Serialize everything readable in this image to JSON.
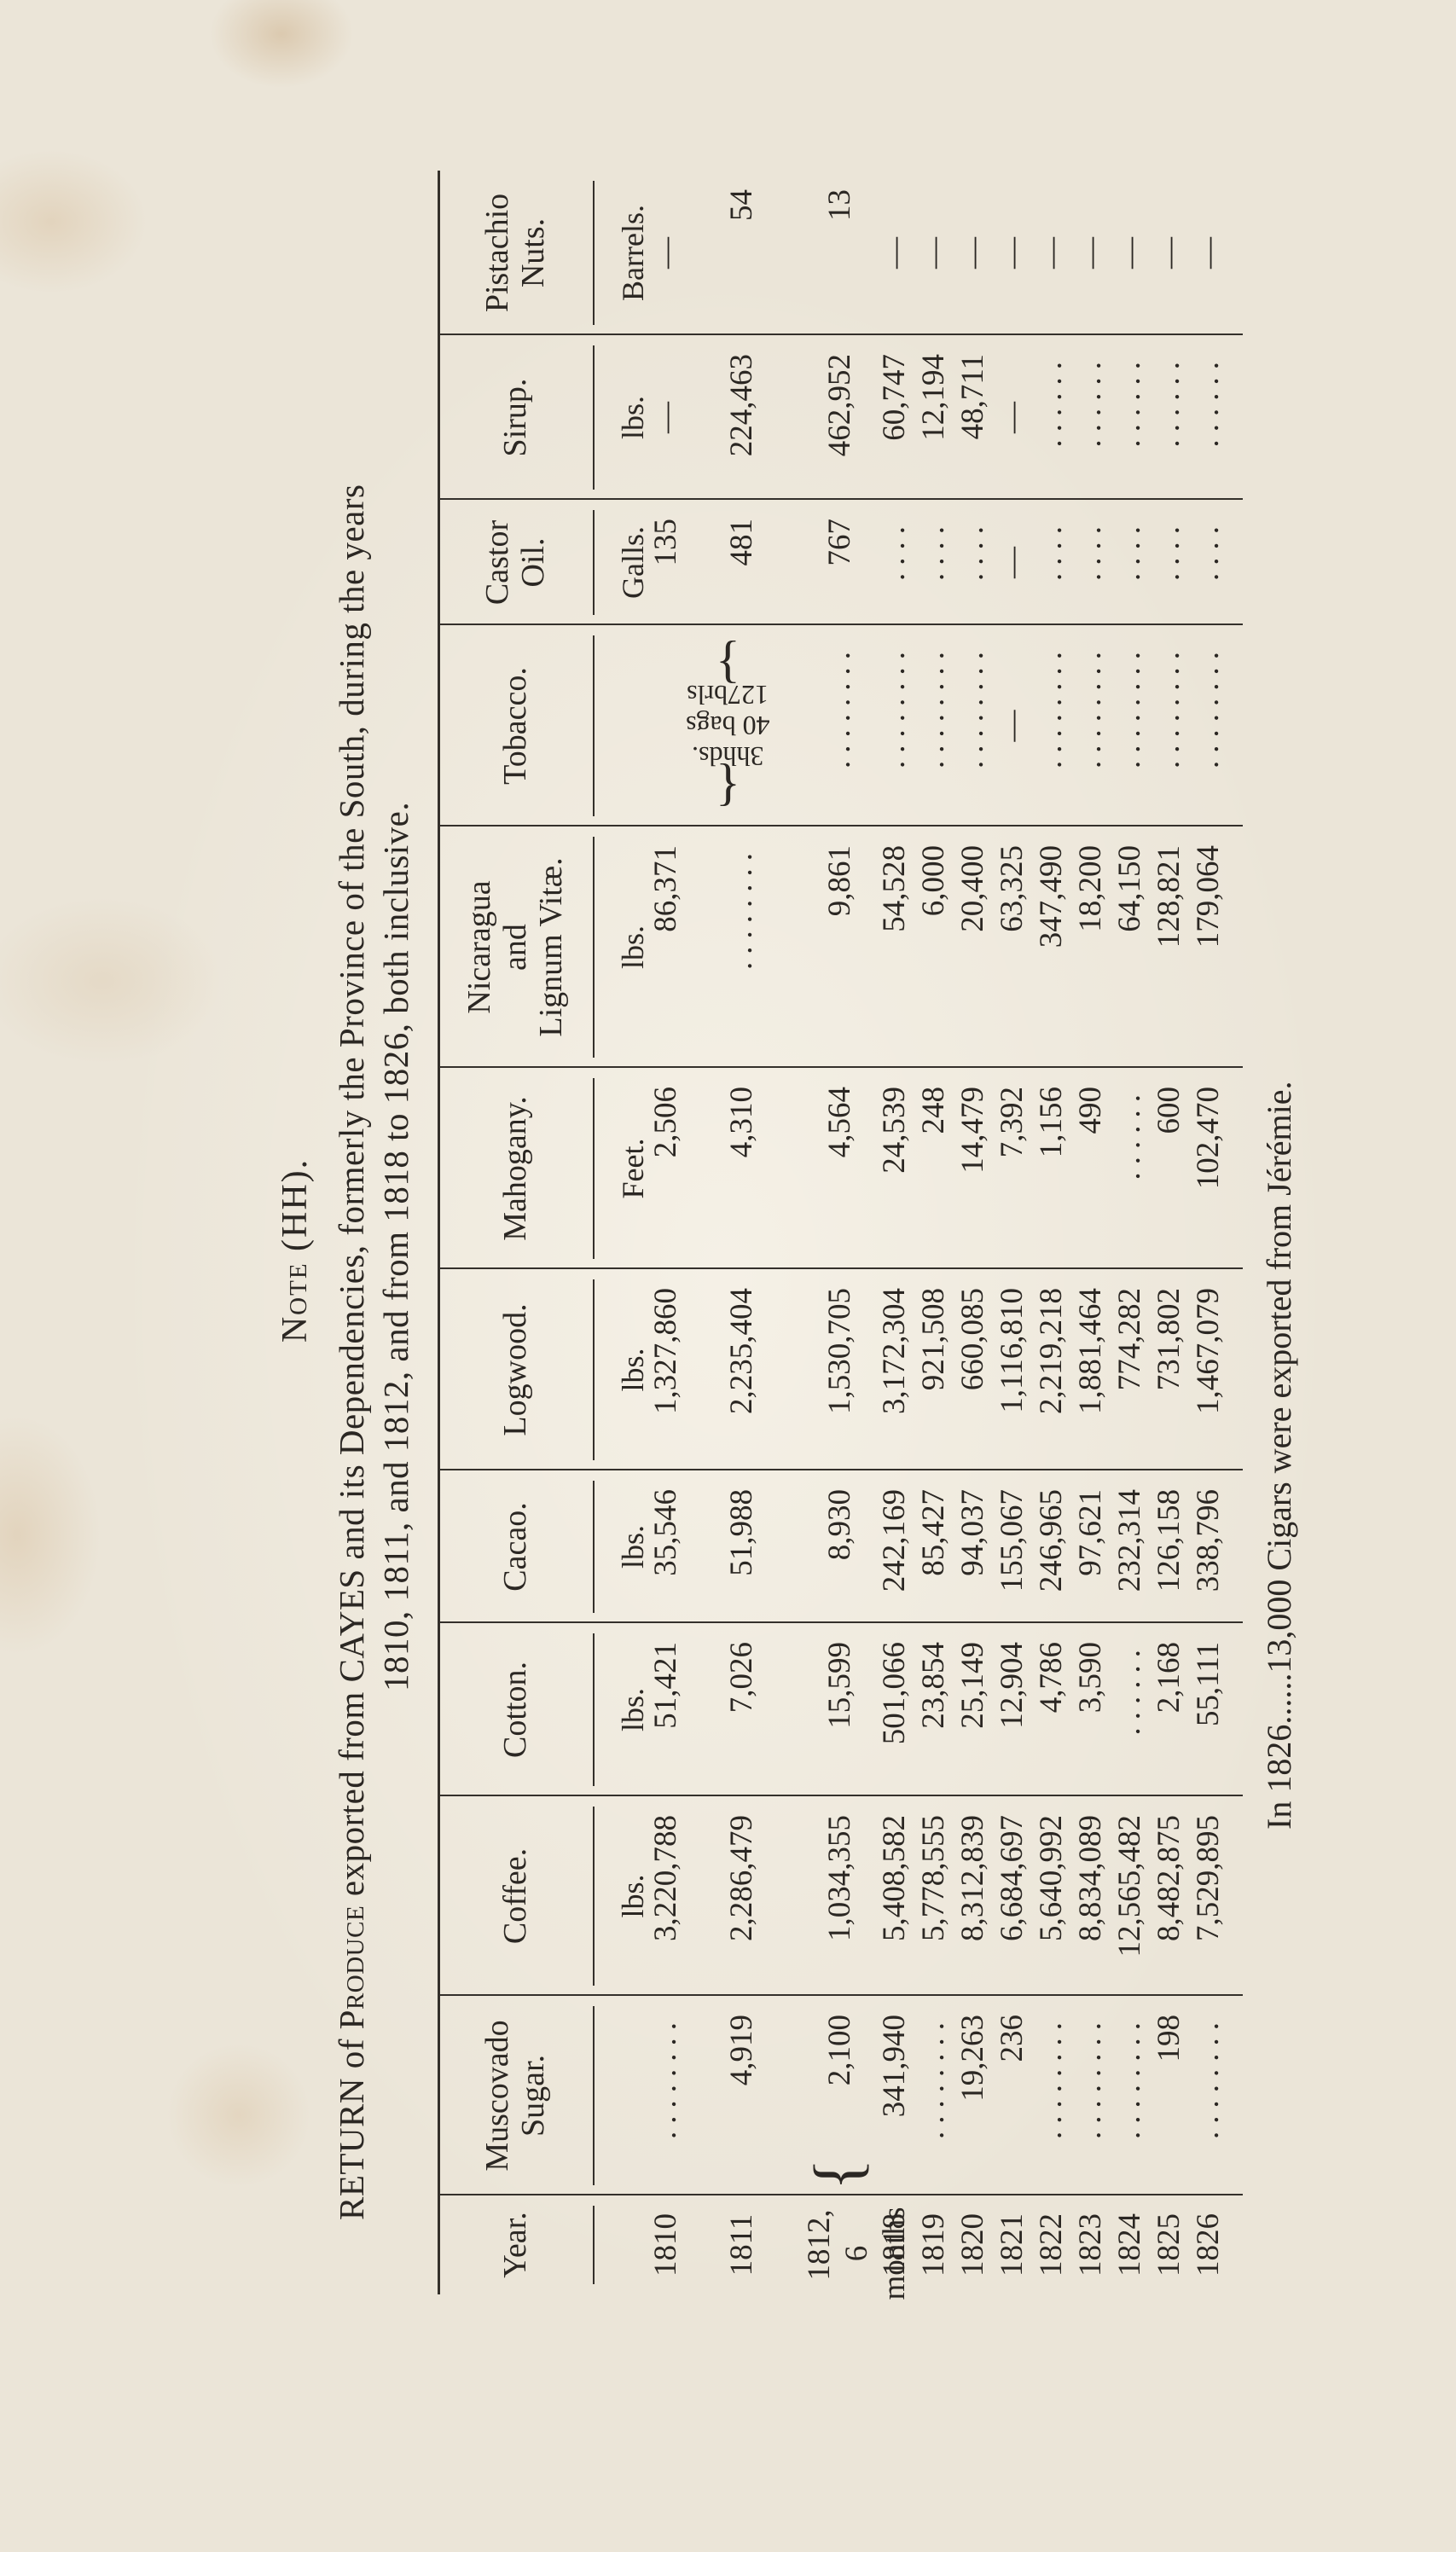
{
  "note_title": "Note (HH).",
  "subtitle": {
    "line1_pre": "RETURN of ",
    "line1_sc": "Produce",
    "line1_post": " exported from CAYES and its Dependencies, formerly the Province of the South, during the years",
    "line2": "1810, 1811, and 1812, and from 1818 to 1826, both inclusive."
  },
  "table": {
    "year_header": "Year.",
    "columns": [
      {
        "header": [
          "Muscovado",
          "Sugar."
        ],
        "unit": ""
      },
      {
        "header": [
          "Coffee."
        ],
        "unit": "lbs."
      },
      {
        "header": [
          "Cotton."
        ],
        "unit": "lbs."
      },
      {
        "header": [
          "Cacao."
        ],
        "unit": "lbs."
      },
      {
        "header": [
          "Logwood."
        ],
        "unit": "lbs."
      },
      {
        "header": [
          "Mahogany."
        ],
        "unit": "Feet."
      },
      {
        "header": [
          "Nicaragua",
          "and",
          "Lignum Vitæ."
        ],
        "unit": "lbs."
      },
      {
        "header": [
          "Tobacco."
        ],
        "unit": ""
      },
      {
        "header": [
          "Castor",
          "Oil."
        ],
        "unit": "Galls."
      },
      {
        "header": [
          "Sirup."
        ],
        "unit": "lbs."
      },
      {
        "header": [
          "Pistachio",
          "Nuts."
        ],
        "unit": "Barrels."
      }
    ],
    "rows": [
      {
        "year": [
          "1810"
        ],
        "values": [
          "........",
          "3,220,788",
          "51,421",
          "35,546",
          "1,327,860",
          "2,506",
          "86,371",
          "",
          "135",
          "—",
          "—"
        ]
      },
      {
        "year": [
          "1811"
        ],
        "values": [
          "4,919",
          "2,286,479",
          "7,026",
          "51,988",
          "2,235,404",
          "4,310",
          "........",
          "",
          "481",
          "224,463",
          "54"
        ]
      },
      {
        "year": [
          "1812,",
          "6 months"
        ],
        "values": [
          "2,100",
          "1,034,355",
          "15,599",
          "8,930",
          "1,530,705",
          "4,564",
          "9,861",
          "........",
          "767",
          "462,952",
          "13"
        ]
      },
      {
        "year": [
          "1818"
        ],
        "values": [
          "341,940",
          "5,408,582",
          "501,066",
          "242,169",
          "3,172,304",
          "24,539",
          "54,528",
          "........",
          "....",
          "60,747",
          "—"
        ]
      },
      {
        "year": [
          "1819"
        ],
        "values": [
          "........",
          "5,778,555",
          "23,854",
          "85,427",
          "921,508",
          "248",
          "6,000",
          "........",
          "....",
          "12,194",
          "—"
        ]
      },
      {
        "year": [
          "1820"
        ],
        "values": [
          "19,263",
          "8,312,839",
          "25,149",
          "94,037",
          "660,085",
          "14,479",
          "20,400",
          "........",
          "....",
          "48,711",
          "—"
        ]
      },
      {
        "year": [
          "1821"
        ],
        "values": [
          "236",
          "6,684,697",
          "12,904",
          "155,067",
          "1,116,810",
          "7,392",
          "63,325",
          "—",
          "—",
          "—",
          "—"
        ]
      },
      {
        "year": [
          "1822"
        ],
        "values": [
          "........",
          "5,640,992",
          "4,786",
          "246,965",
          "2,219,218",
          "1,156",
          "347,490",
          "........",
          "....",
          "......",
          "—"
        ]
      },
      {
        "year": [
          "1823"
        ],
        "values": [
          "........",
          "8,834,089",
          "3,590",
          "97,621",
          "1,881,464",
          "490",
          "18,200",
          "........",
          "....",
          "......",
          "—"
        ]
      },
      {
        "year": [
          "1824"
        ],
        "values": [
          "........",
          "12,565,482",
          "......",
          "232,314",
          "774,282",
          "......",
          "64,150",
          "........",
          "....",
          "......",
          "—"
        ]
      },
      {
        "year": [
          "1825"
        ],
        "values": [
          "198",
          "8,482,875",
          "2,168",
          "126,158",
          "731,802",
          "600",
          "128,821",
          "........",
          "....",
          "......",
          "—"
        ]
      },
      {
        "year": [
          "1826"
        ],
        "values": [
          "........",
          "7,529,895",
          "55,111",
          "338,796",
          "1,467,079",
          "102,470",
          "179,064",
          "........",
          "....",
          "......",
          "—"
        ]
      }
    ],
    "tobacco_1810_note": [
      "3hhds.",
      "40 bags",
      "127brls"
    ]
  },
  "footnote": "In 1826......13,000 Cigars were exported from Jérémie.",
  "colors": {
    "paper": "#ebe5d8",
    "ink": "#2b2723"
  }
}
